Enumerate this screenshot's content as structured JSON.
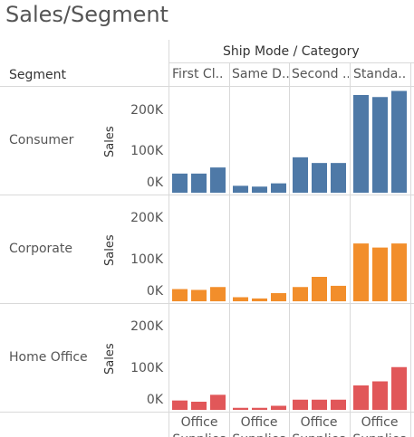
{
  "title": "Sales/Segment",
  "header": {
    "group_label": "Ship Mode / Category",
    "row_dim_label": "Segment",
    "columns": [
      "First Cl..",
      "Same D..",
      "Second ..",
      "Standa.."
    ],
    "footer_labels": [
      "Office",
      "Office",
      "Office",
      "Office"
    ],
    "footer_labels2": [
      "Supplies",
      "Supplies",
      "Supplies",
      "Supplies"
    ]
  },
  "rows": [
    {
      "label": "Consumer",
      "measure": "Sales",
      "ticks": [
        "200K",
        "100K",
        "0K"
      ]
    },
    {
      "label": "Corporate",
      "measure": "Sales",
      "ticks": [
        "200K",
        "100K",
        "0K"
      ]
    },
    {
      "label": "Home Office",
      "measure": "Sales",
      "ticks": [
        "200K",
        "100K",
        "0K"
      ]
    }
  ],
  "colors": {
    "Consumer": "#4e79a7",
    "Corporate": "#f28e2b",
    "Home Office": "#e15759"
  },
  "chart_data": {
    "type": "bar",
    "title": "Sales/Segment",
    "column_dimension": "Ship Mode / Category",
    "row_dimension": "Segment",
    "measure": "Sales",
    "ship_modes": [
      "First Cl..",
      "Same D..",
      "Second ..",
      "Standa.."
    ],
    "categories_per_ship_mode": 3,
    "ylim": [
      0,
      250000
    ],
    "yticks": [
      0,
      100000,
      200000
    ],
    "series": [
      {
        "name": "Consumer",
        "values": [
          [
            47000,
            47000,
            62000
          ],
          [
            17000,
            15000,
            23000
          ],
          [
            87000,
            73000,
            73000
          ],
          [
            240000,
            235000,
            250000
          ]
        ]
      },
      {
        "name": "Corporate",
        "values": [
          [
            30000,
            28000,
            35000
          ],
          [
            10000,
            7000,
            20000
          ],
          [
            35000,
            60000,
            38000
          ],
          [
            142000,
            132000,
            142000
          ]
        ]
      },
      {
        "name": "Home Office",
        "values": [
          [
            23000,
            20000,
            37000
          ],
          [
            5000,
            5000,
            10000
          ],
          [
            25000,
            25000,
            25000
          ],
          [
            60000,
            70000,
            105000
          ]
        ]
      }
    ]
  }
}
